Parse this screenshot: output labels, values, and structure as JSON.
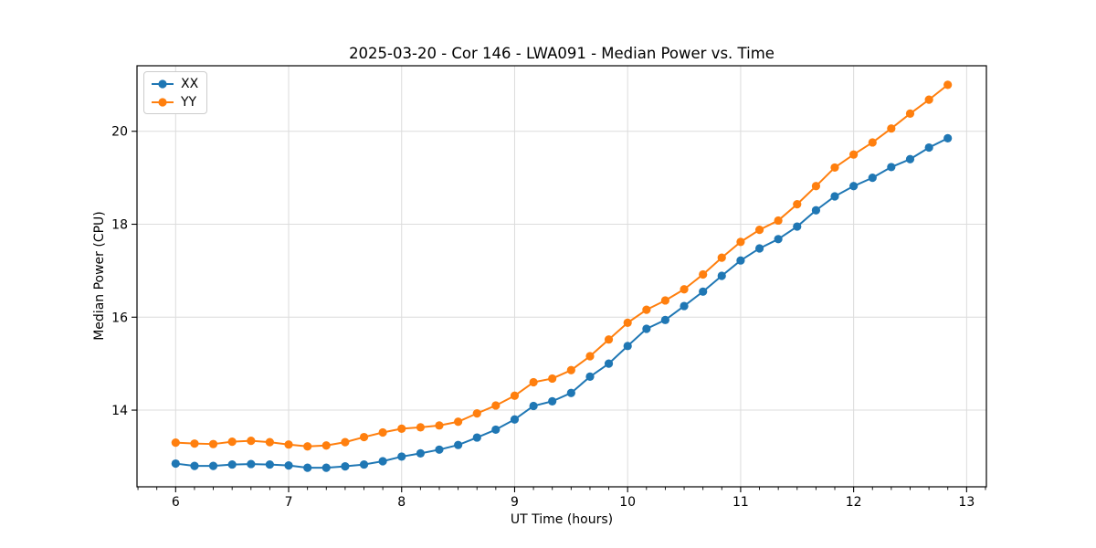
{
  "chart_data": {
    "type": "line",
    "title": "2025-03-20 - Cor 146 - LWA091 - Median Power vs. Time",
    "xlabel": "UT Time (hours)",
    "ylabel": "Median Power (CPU)",
    "xlim": [
      5.658,
      13.175
    ],
    "ylim": [
      12.35,
      21.41
    ],
    "xticks": [
      6,
      7,
      8,
      9,
      10,
      11,
      12,
      13
    ],
    "yticks": [
      14,
      16,
      18,
      20
    ],
    "minor_tick_interval": 0.166667,
    "grid": true,
    "grid_color": "#dcdcdc",
    "legend_position": "upper left",
    "x": [
      6.0,
      6.167,
      6.333,
      6.5,
      6.667,
      6.833,
      7.0,
      7.167,
      7.333,
      7.5,
      7.667,
      7.833,
      8.0,
      8.167,
      8.333,
      8.5,
      8.667,
      8.833,
      9.0,
      9.167,
      9.333,
      9.5,
      9.667,
      9.833,
      10.0,
      10.167,
      10.333,
      10.5,
      10.667,
      10.833,
      11.0,
      11.167,
      11.333,
      11.5,
      11.667,
      11.833,
      12.0,
      12.167,
      12.333,
      12.5,
      12.667,
      12.833
    ],
    "series": [
      {
        "name": "XX",
        "color": "#1f77b4",
        "values": [
          12.85,
          12.8,
          12.8,
          12.83,
          12.84,
          12.83,
          12.81,
          12.76,
          12.76,
          12.79,
          12.83,
          12.9,
          13.0,
          13.07,
          13.15,
          13.25,
          13.41,
          13.58,
          13.8,
          14.09,
          14.19,
          14.37,
          14.72,
          15.0,
          15.38,
          15.75,
          15.94,
          16.24,
          16.55,
          16.89,
          17.22,
          17.48,
          17.68,
          17.95,
          18.3,
          18.6,
          18.82,
          19.0,
          19.23,
          19.4,
          19.65,
          19.85
        ]
      },
      {
        "name": "YY",
        "color": "#ff7f0e",
        "values": [
          13.3,
          13.28,
          13.27,
          13.32,
          13.34,
          13.31,
          13.26,
          13.22,
          13.24,
          13.31,
          13.42,
          13.52,
          13.6,
          13.63,
          13.67,
          13.75,
          13.93,
          14.1,
          14.31,
          14.6,
          14.68,
          14.86,
          15.16,
          15.52,
          15.88,
          16.16,
          16.36,
          16.6,
          16.92,
          17.28,
          17.62,
          17.88,
          18.08,
          18.43,
          18.82,
          19.22,
          19.5,
          19.76,
          20.06,
          20.38,
          20.68,
          21.0
        ]
      }
    ]
  }
}
